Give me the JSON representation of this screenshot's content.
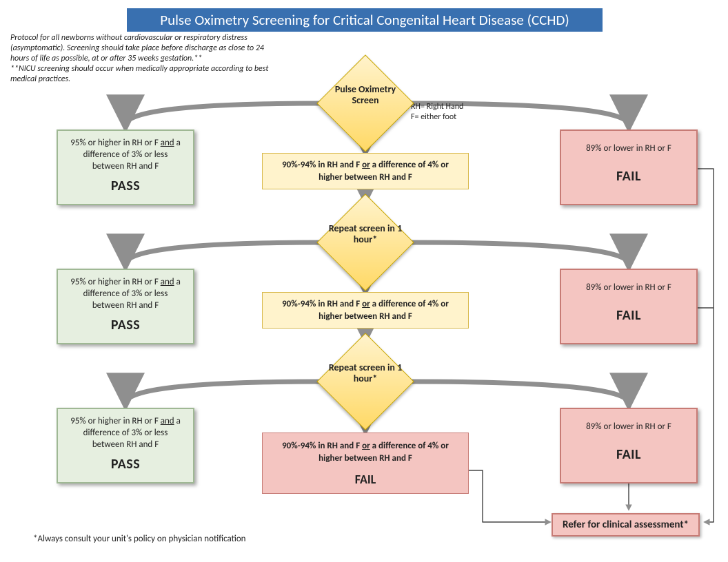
{
  "title": "Pulse Oximetry Screening for Critical Congenital Heart Disease (CCHD)",
  "protocol_note": "Protocol for all newborns without cardiovascular or respiratory distress (asymptomatic). Screening should take place before discharge as close to 24 hours of life as possible, at or after 35 weeks gestation.**\n**NICU screening should occur when medically appropriate according to best medical practices.",
  "legend_rh": "RH= Right Hand",
  "legend_f": "F= either foot",
  "footnote": "*Always consult your unit's policy on physician notification",
  "diamonds": {
    "start": "Pulse Oximetry Screen",
    "repeat1": "Repeat screen in 1 hour*",
    "repeat2": "Repeat screen in 1 hour*"
  },
  "mid": {
    "range_prefix": "90%-94% in RH and F ",
    "range_or": "or",
    "range_suffix": " a difference of 4% or higher between RH and F",
    "fail_word": "FAIL"
  },
  "pass": {
    "cond_prefix": "95% or higher in RH or F ",
    "and": "and",
    "cond_suffix": " a difference of 3% or less between RH and F",
    "result": "PASS"
  },
  "fail": {
    "cond": "89% or lower in RH or F",
    "result": "FAIL"
  },
  "refer": "Refer for clinical assessment*",
  "colors": {
    "title_bg": "#3970b0",
    "pass_bg": "#e6efe0",
    "fail_bg": "#f4c5c1",
    "diamond_light": "#fff3cc",
    "diamond_dark": "#ffd966",
    "arrow": "#8f8f8f"
  }
}
